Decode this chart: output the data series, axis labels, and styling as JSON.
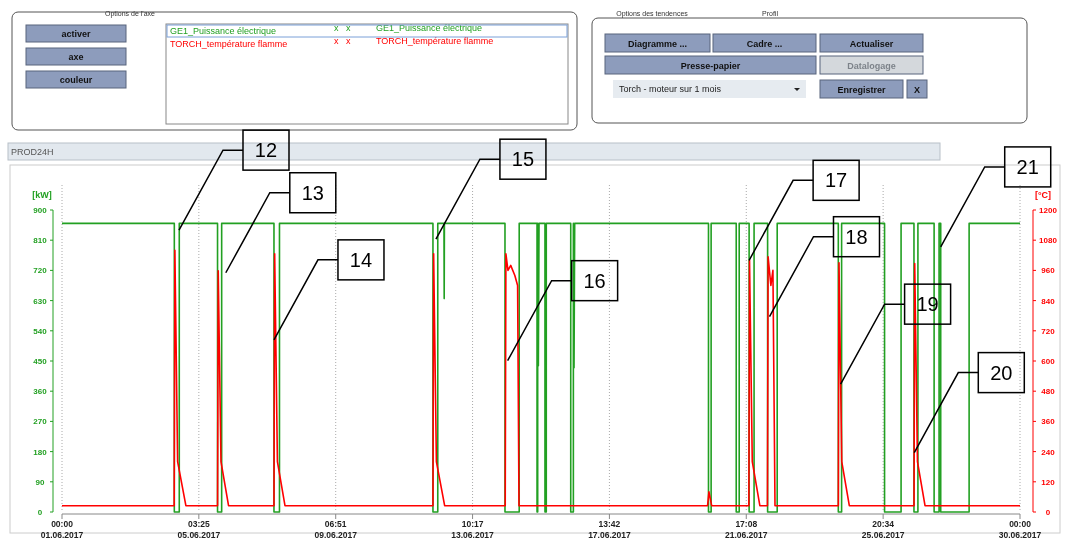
{
  "chart_data": {
    "type": "line",
    "ylabel": "[kW]",
    "y2label": "[°C]",
    "legend": "top",
    "grid": "x",
    "line_style": "solid",
    "marker": "none",
    "xlim": [
      "2017-06-01T00:00",
      "2017-06-30T00:00"
    ],
    "xticks": [
      {
        "value": "2017-06-01T00:00",
        "label": "00:00\n01.06.2017"
      },
      {
        "value": "2017-06-05T03:25",
        "label": "03:25\n05.06.2017"
      },
      {
        "value": "2017-06-09T06:51",
        "label": "06:51\n09.06.2017"
      },
      {
        "value": "2017-06-13T10:17",
        "label": "10:17\n13.06.2017"
      },
      {
        "value": "2017-06-17T13:42",
        "label": "13:42\n17.06.2017"
      },
      {
        "value": "2017-06-21T17:08",
        "label": "17:08\n21.06.2017"
      },
      {
        "value": "2017-06-25T20:34",
        "label": "20:34\n25.06.2017"
      },
      {
        "value": "2017-06-30T00:00",
        "label": "00:00\n30.06.2017"
      }
    ],
    "ylim": [
      0,
      900
    ],
    "yticks": [
      0,
      90,
      180,
      270,
      360,
      450,
      540,
      630,
      720,
      810,
      900
    ],
    "y2lim": [
      0,
      1200
    ],
    "y2ticks": [
      0,
      120,
      240,
      360,
      480,
      600,
      720,
      840,
      960,
      1080,
      1200
    ],
    "series": [
      {
        "name": "GE1_Puissance électrique",
        "color": "#22a022",
        "x": [
          "2017-06-01T00:00",
          "2017-06-04T09:36",
          "2017-06-04T09:36",
          "2017-06-04T13:12",
          "2017-06-04T13:12",
          "2017-06-05T17:00",
          "2017-06-05T17:00",
          "2017-06-05T20:00",
          "2017-06-05T20:00",
          "2017-06-07T10:00",
          "2017-06-07T10:00",
          "2017-06-07T14:00",
          "2017-06-07T14:00",
          "2017-06-12T05:30",
          "2017-06-12T05:30",
          "2017-06-12T09:00",
          "2017-06-12T09:00",
          "2017-06-12T13:30",
          "2017-06-12T13:40",
          "2017-06-12T13:50",
          "2017-06-14T09:50",
          "2017-06-14T09:50",
          "2017-06-14T20:10",
          "2017-06-14T20:10",
          "2017-06-15T09:07",
          "2017-06-15T09:07",
          "2017-06-15T09:36",
          "2017-06-15T09:36",
          "2017-06-15T10:05",
          "2017-06-15T10:34",
          "2017-06-15T14:53",
          "2017-06-15T14:53",
          "2017-06-15T15:50",
          "2017-06-15T15:50",
          "2017-06-16T09:36",
          "2017-06-16T09:36",
          "2017-06-16T11:31",
          "2017-06-16T11:31",
          "2017-06-16T12:00",
          "2017-06-16T12:29",
          "2017-06-20T13:41",
          "2017-06-20T13:41",
          "2017-06-20T15:36",
          "2017-06-20T15:36",
          "2017-06-21T09:50",
          "2017-06-21T09:50",
          "2017-06-21T12:00",
          "2017-06-21T12:00",
          "2017-06-21T19:12",
          "2017-06-21T19:12",
          "2017-06-21T22:48",
          "2017-06-21T22:48",
          "2017-06-22T08:38",
          "2017-06-22T08:38",
          "2017-06-22T15:36",
          "2017-06-22T15:36",
          "2017-06-24T12:00",
          "2017-06-24T12:00",
          "2017-06-24T14:24",
          "2017-06-24T14:24",
          "2017-06-25T21:36",
          "2017-06-25T21:36",
          "2017-06-26T09:36",
          "2017-06-26T09:36",
          "2017-06-26T18:58",
          "2017-06-26T18:58",
          "2017-06-26T21:50",
          "2017-06-26T21:50",
          "2017-06-27T09:36",
          "2017-06-27T09:36",
          "2017-06-27T13:12",
          "2017-06-27T13:12",
          "2017-06-27T14:24",
          "2017-06-27T14:24",
          "2017-06-28T11:02",
          "2017-06-28T11:02",
          "2017-06-30T00:00"
        ],
        "values": [
          860,
          860,
          0,
          0,
          860,
          860,
          0,
          0,
          860,
          860,
          0,
          0,
          860,
          860,
          0,
          0,
          860,
          860,
          636,
          860,
          860,
          0,
          0,
          860,
          860,
          0,
          0,
          860,
          436,
          860,
          860,
          0,
          0,
          860,
          860,
          0,
          0,
          860,
          430,
          860,
          860,
          0,
          0,
          860,
          860,
          0,
          0,
          860,
          860,
          0,
          0,
          860,
          860,
          0,
          0,
          860,
          860,
          0,
          0,
          860,
          860,
          0,
          0,
          860,
          860,
          0,
          0,
          860,
          860,
          0,
          0,
          860,
          860,
          0,
          0,
          860,
          860
        ]
      },
      {
        "name": "TORCH_température flamme",
        "color": "#ff0000",
        "axis": "y2",
        "x": [
          "2017-06-01T00:00",
          "2017-06-04T09:30",
          "2017-06-04T10:00",
          "2017-06-04T12:00",
          "2017-06-04T18:00",
          "2017-06-05T17:00",
          "2017-06-05T17:30",
          "2017-06-05T19:30",
          "2017-06-06T01:00",
          "2017-06-07T10:00",
          "2017-06-07T10:30",
          "2017-06-07T12:30",
          "2017-06-07T18:00",
          "2017-06-12T05:30",
          "2017-06-12T06:00",
          "2017-06-12T08:00",
          "2017-06-12T14:00",
          "2017-06-14T10:00",
          "2017-06-14T10:30",
          "2017-06-14T12:00",
          "2017-06-14T14:00",
          "2017-06-14T17:00",
          "2017-06-14T19:00",
          "2017-06-14T20:00",
          "2017-06-20T13:00",
          "2017-06-20T14:00",
          "2017-06-20T16:00",
          "2017-06-21T19:00",
          "2017-06-21T19:30",
          "2017-06-21T21:30",
          "2017-06-22T03:00",
          "2017-06-22T08:30",
          "2017-06-22T09:00",
          "2017-06-22T11:00",
          "2017-06-22T12:30",
          "2017-06-22T14:00",
          "2017-06-24T12:00",
          "2017-06-24T12:30",
          "2017-06-24T14:30",
          "2017-06-24T20:00",
          "2017-06-26T19:00",
          "2017-06-26T19:30",
          "2017-06-26T21:30",
          "2017-06-27T03:00",
          "2017-06-30T00:00"
        ],
        "values": [
          25,
          25,
          1040,
          200,
          25,
          25,
          958,
          200,
          25,
          25,
          1026,
          200,
          25,
          25,
          1026,
          200,
          25,
          25,
          1026,
          960,
          980,
          940,
          900,
          25,
          25,
          80,
          25,
          25,
          1000,
          200,
          25,
          25,
          1014,
          900,
          960,
          25,
          25,
          990,
          200,
          25,
          25,
          987,
          200,
          25,
          25
        ]
      }
    ],
    "annotations": [
      "Options de l'axe",
      "activer",
      "axe",
      "couleur",
      "x",
      "x",
      "GE1_Puissance électrique",
      "x",
      "x",
      "TORCH_température flamme",
      "Options des tendences",
      "Profil",
      "Diagramme ...",
      "Cadre ...",
      "Actualiser",
      "Presse-papier",
      "Datalogage",
      "Torch - moteur sur 1 mois",
      "Enregistrer",
      "X",
      "PROD24H",
      {
        "text": "12",
        "x": "2017-06-04T13:00",
        "y": 840
      },
      {
        "text": "13",
        "x": "2017-06-05T23:00",
        "y": 713
      },
      {
        "text": "14",
        "x": "2017-06-07T10:00",
        "y": 513
      },
      {
        "text": "15",
        "x": "2017-06-12T07:40",
        "y": 813
      },
      {
        "text": "16",
        "x": "2017-06-14T11:45",
        "y": 451
      },
      {
        "text": "17",
        "x": "2017-06-21T19:12",
        "y": 750
      },
      {
        "text": "18",
        "x": "2017-06-22T10:00",
        "y": 582
      },
      {
        "text": "19",
        "x": "2017-06-24T13:40",
        "y": 381
      },
      {
        "text": "20",
        "x": "2017-06-26T19:12",
        "y": 177
      },
      {
        "text": "21",
        "x": "2017-06-27T14:24",
        "y": 790
      }
    ]
  }
}
